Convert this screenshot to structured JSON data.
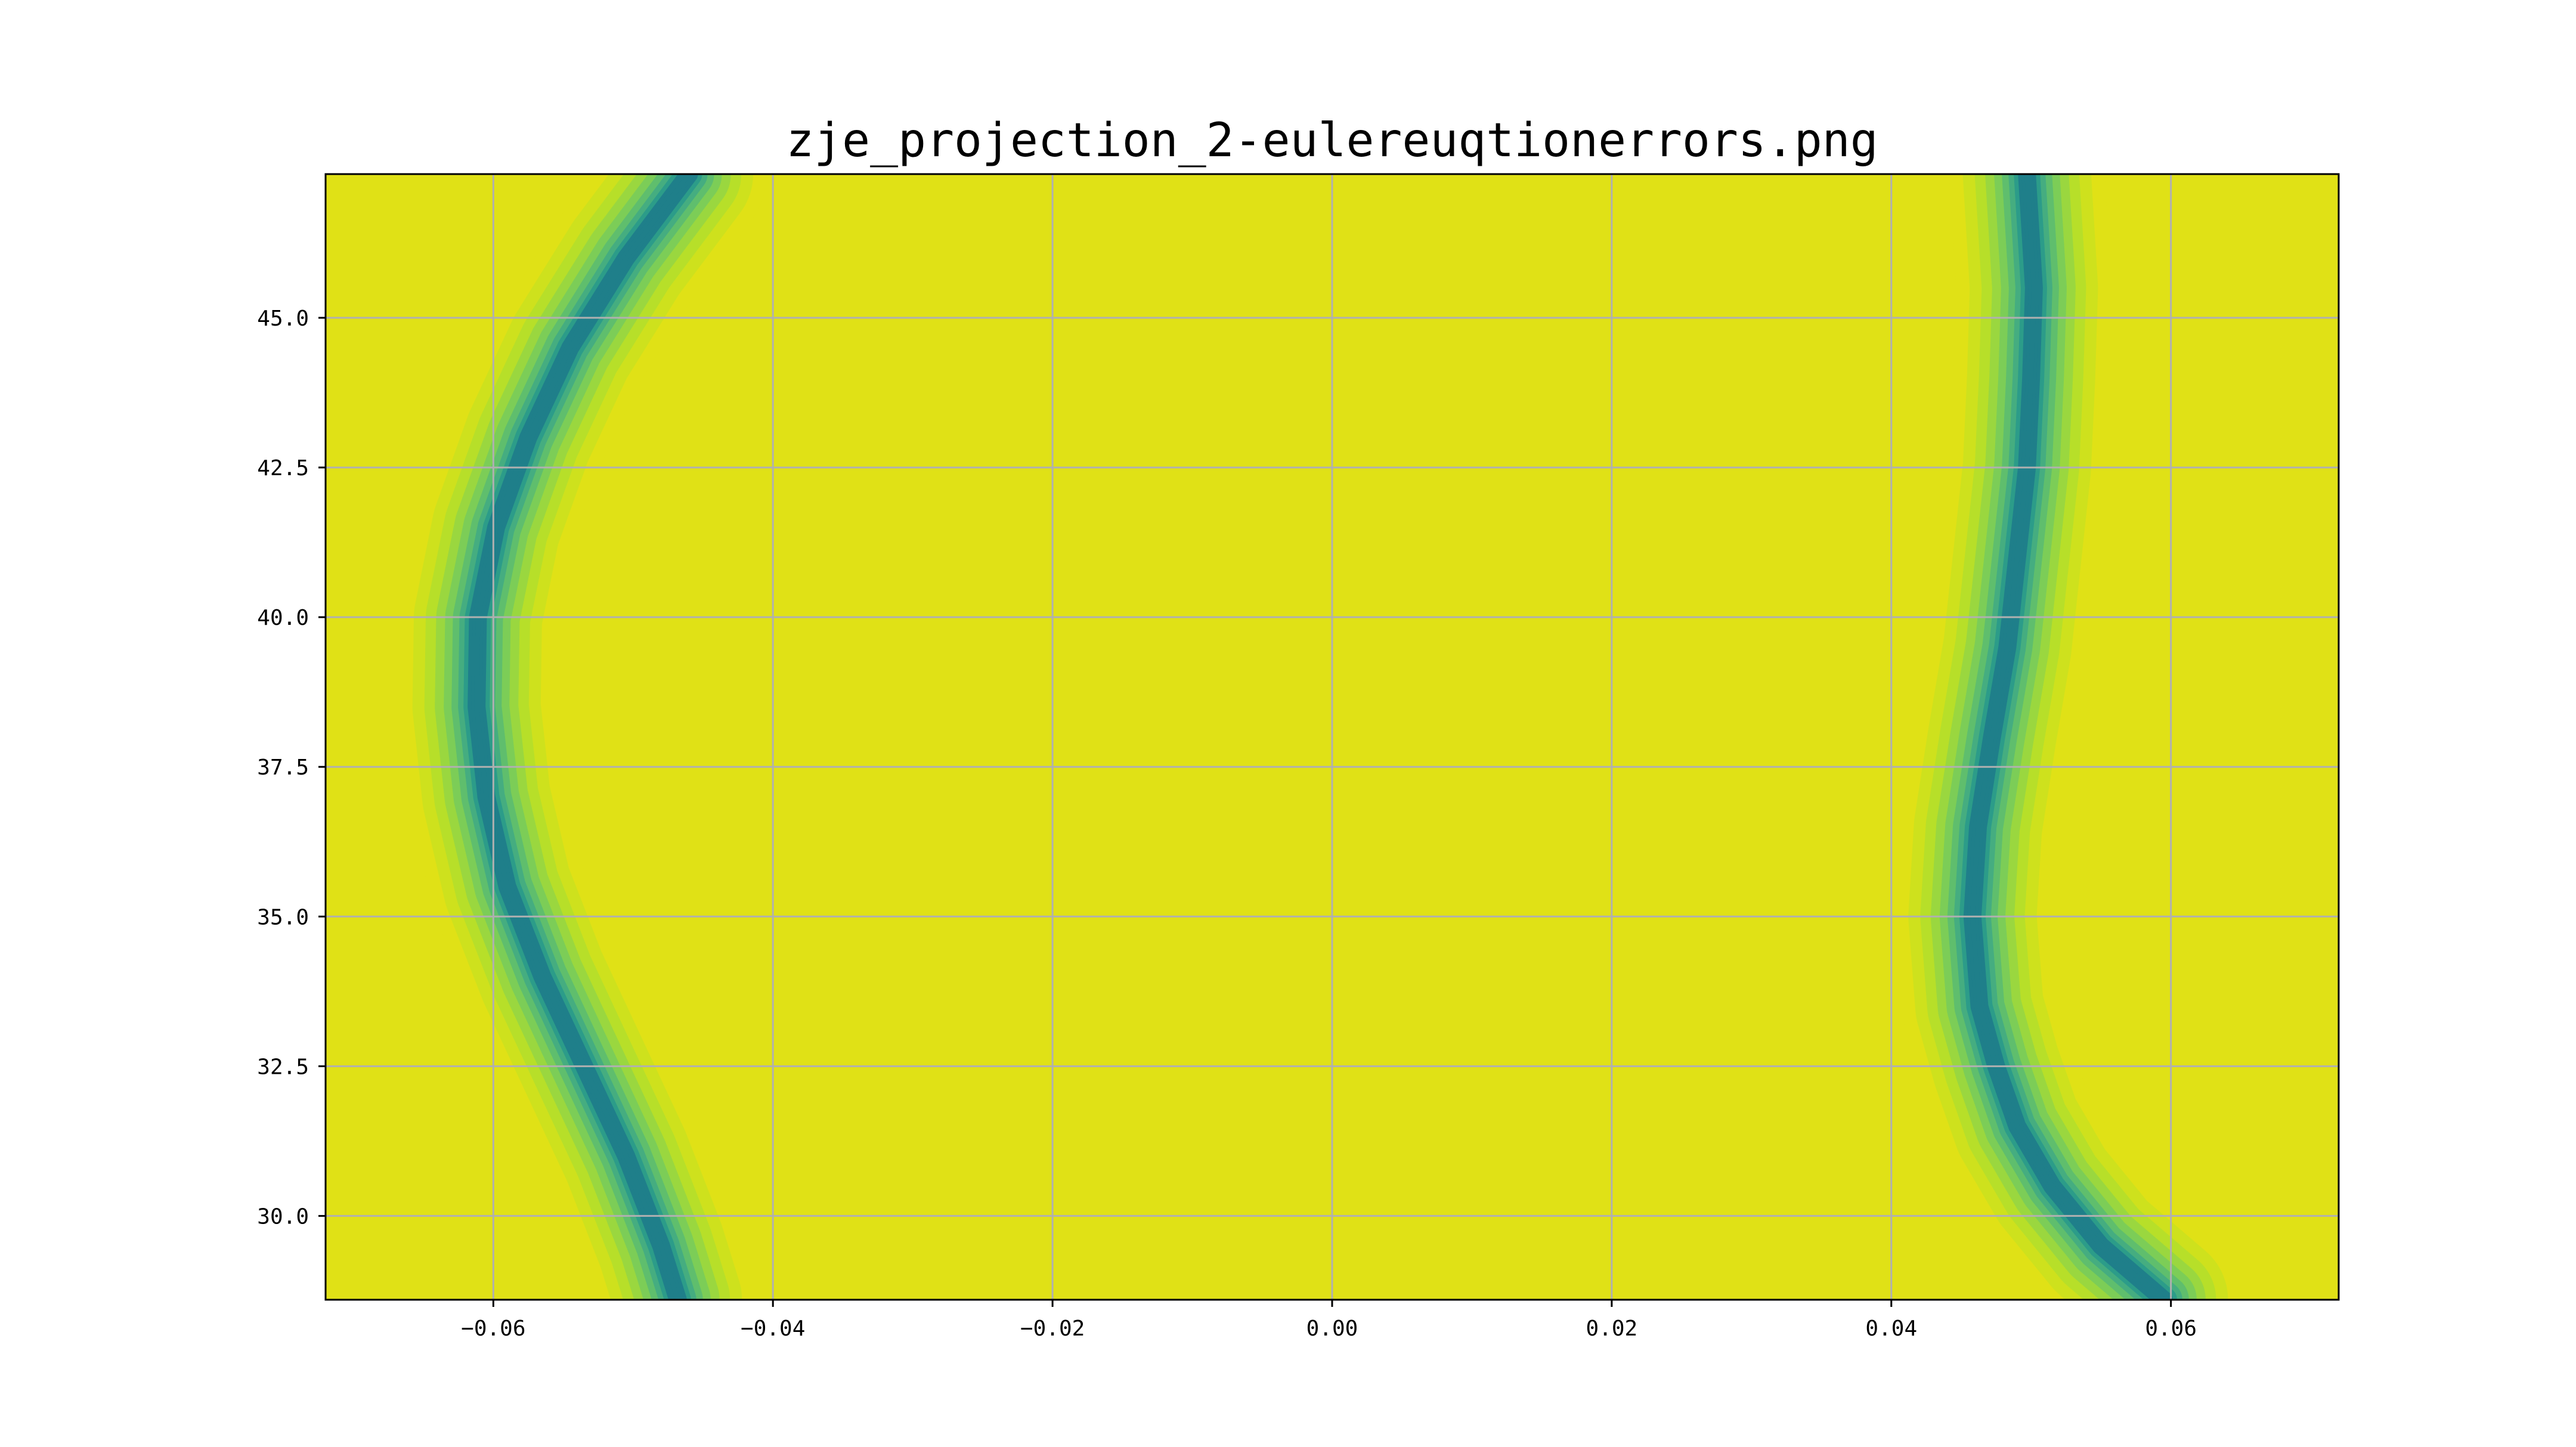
{
  "chart_data": {
    "type": "heatmap",
    "subtype": "filled-contour",
    "title": "zje_projection_2-eulereuqtionerrors.png",
    "xlabel": "",
    "ylabel": "",
    "xlim": [
      -0.072,
      0.072
    ],
    "ylim": [
      28.6,
      47.4
    ],
    "xticks": [
      -0.06,
      -0.04,
      -0.02,
      0.0,
      0.02,
      0.04,
      0.06
    ],
    "xtick_labels": [
      "−0.06",
      "−0.04",
      "−0.02",
      "0.00",
      "0.02",
      "0.04",
      "0.06"
    ],
    "yticks": [
      30.0,
      32.5,
      35.0,
      37.5,
      40.0,
      42.5,
      45.0
    ],
    "ytick_labels": [
      "30.0",
      "32.5",
      "35.0",
      "37.5",
      "40.0",
      "42.5",
      "45.0"
    ],
    "grid": true,
    "colormap": "viridis",
    "band_colors": [
      "#1f7f8a",
      "#2c9c89",
      "#45ad80",
      "#5fbe6d",
      "#7ccd57",
      "#9ad73f",
      "#b7df29",
      "#cee11d",
      "#e0e116",
      "#f1e51d"
    ],
    "minima_curves": [
      {
        "name": "left",
        "points": [
          [
            -0.0468,
            28.6
          ],
          [
            -0.048,
            29.5
          ],
          [
            -0.0505,
            31.0
          ],
          [
            -0.0535,
            32.5
          ],
          [
            -0.0565,
            34.0
          ],
          [
            -0.059,
            35.5
          ],
          [
            -0.0605,
            37.0
          ],
          [
            -0.0612,
            38.5
          ],
          [
            -0.0611,
            40.0
          ],
          [
            -0.0598,
            41.5
          ],
          [
            -0.0575,
            43.0
          ],
          [
            -0.0545,
            44.5
          ],
          [
            -0.0505,
            46.0
          ],
          [
            -0.046,
            47.4
          ]
        ]
      },
      {
        "name": "right",
        "points": [
          [
            0.0595,
            28.6
          ],
          [
            0.055,
            29.5
          ],
          [
            0.0515,
            30.5
          ],
          [
            0.049,
            31.5
          ],
          [
            0.0475,
            32.5
          ],
          [
            0.0463,
            33.5
          ],
          [
            0.0458,
            35.0
          ],
          [
            0.0462,
            36.5
          ],
          [
            0.0472,
            38.0
          ],
          [
            0.0483,
            39.5
          ],
          [
            0.049,
            41.0
          ],
          [
            0.0497,
            42.5
          ],
          [
            0.05,
            44.0
          ],
          [
            0.0502,
            45.5
          ],
          [
            0.0497,
            47.4
          ]
        ]
      }
    ]
  }
}
